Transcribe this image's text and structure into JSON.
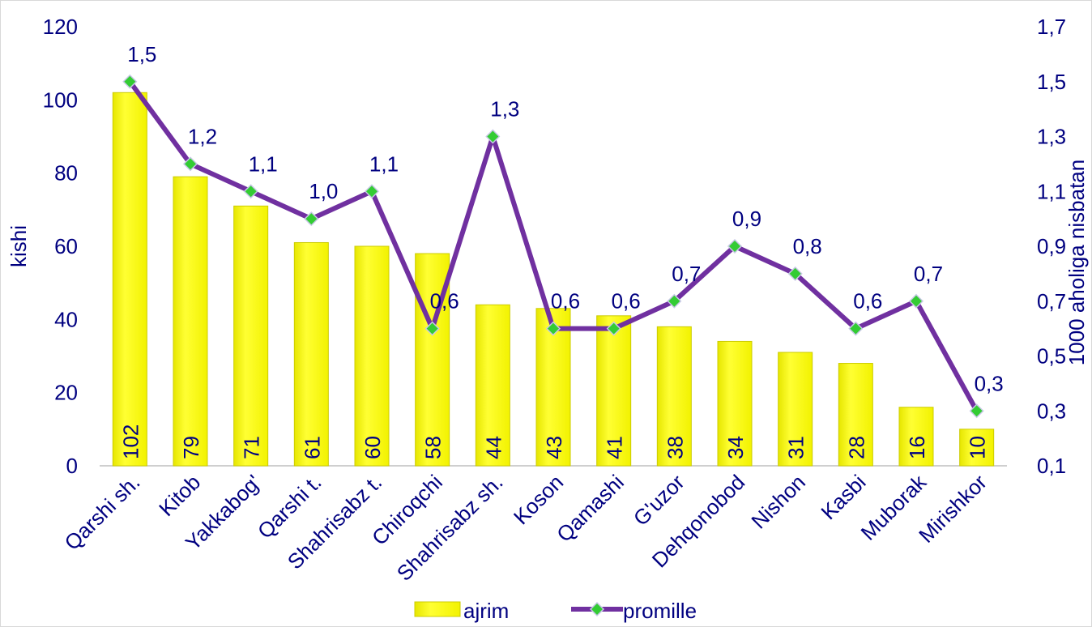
{
  "chart_data": {
    "type": "bar",
    "categories": [
      "Qarshi sh.",
      "Kitob",
      "Yakkabog'",
      "Qarshi t.",
      "Shahrisabz t.",
      "Chiroqchi",
      "Shahrisabz sh.",
      "Koson",
      "Qamashi",
      "G'uzor",
      "Dehqonobod",
      "Nishon",
      "Kasbi",
      "Muborak",
      "Mirishkor"
    ],
    "series": [
      {
        "name": "ajrim",
        "type": "bar",
        "axis": "left",
        "color": "#ffff00",
        "values": [
          102,
          79,
          71,
          61,
          60,
          58,
          44,
          43,
          41,
          38,
          34,
          31,
          28,
          16,
          10
        ],
        "labels": [
          "102",
          "79",
          "71",
          "61",
          "60",
          "58",
          "44",
          "43",
          "41",
          "38",
          "34",
          "31",
          "28",
          "16",
          "10"
        ]
      },
      {
        "name": "promille",
        "type": "line",
        "axis": "right",
        "color": "#7030a0",
        "marker_color": "#33cc33",
        "values": [
          1.5,
          1.2,
          1.1,
          1.0,
          1.1,
          0.6,
          1.3,
          0.6,
          0.6,
          0.7,
          0.9,
          0.8,
          0.6,
          0.7,
          0.3
        ],
        "labels": [
          "1,5",
          "1,2",
          "1,1",
          "1,0",
          "1,1",
          "0,6",
          "1,3",
          "0,6",
          "0,6",
          "0,7",
          "0,9",
          "0,8",
          "0,6",
          "0,7",
          "0,3"
        ]
      }
    ],
    "ylabel": "kishi",
    "y2label": "1000 aholiga nisbatan",
    "ylim": [
      0,
      120
    ],
    "y2lim": [
      0.1,
      1.7
    ],
    "yticks": [
      "0",
      "20",
      "40",
      "60",
      "80",
      "100",
      "120"
    ],
    "y2ticks": [
      "0,1",
      "0,3",
      "0,5",
      "0,7",
      "0,9",
      "1,1",
      "1,3",
      "1,5",
      "1,7"
    ],
    "grid": false,
    "legend_position": "bottom",
    "text_color": "#000080"
  }
}
